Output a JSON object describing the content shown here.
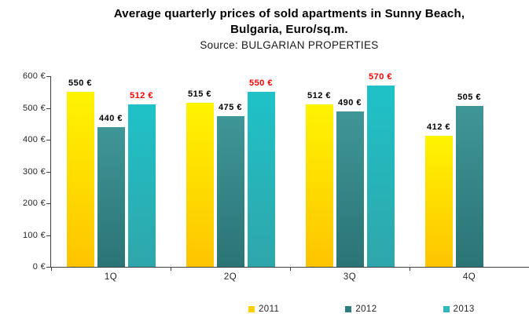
{
  "chart_data": {
    "type": "bar",
    "title": "Average quarterly prices of sold apartments in Sunny Beach, Bulgaria, Euro/sq.m.",
    "title_lines": [
      "Average quarterly prices of sold apartments in Sunny Beach,",
      "Bulgaria, Euro/sq.m."
    ],
    "subtitle": "Source: BULGARIAN PROPERTIES",
    "categories": [
      "1Q",
      "2Q",
      "3Q",
      "4Q"
    ],
    "series": [
      {
        "name": "2011",
        "values": [
          550,
          515,
          512,
          412
        ],
        "color_top": "#FFF400",
        "color_bottom": "#FEC400",
        "legend_color": "#FCD005",
        "label_color": "#000000"
      },
      {
        "name": "2012",
        "values": [
          440,
          475,
          490,
          505
        ],
        "color_top": "#3F9697",
        "color_bottom": "#2B7475",
        "legend_color": "#2E7D7E",
        "label_color": "#000000"
      },
      {
        "name": "2013",
        "values": [
          512,
          550,
          570,
          null
        ],
        "color_top": "#1EC2C8",
        "color_bottom": "#2FA6AA",
        "legend_color": "#30B8BD",
        "label_color": "#FF0000"
      }
    ],
    "value_suffix": " €",
    "ylim": [
      0,
      600
    ],
    "ytick_step": 100,
    "ytick_suffix": " €",
    "grid": false,
    "legend_position": "bottom"
  }
}
